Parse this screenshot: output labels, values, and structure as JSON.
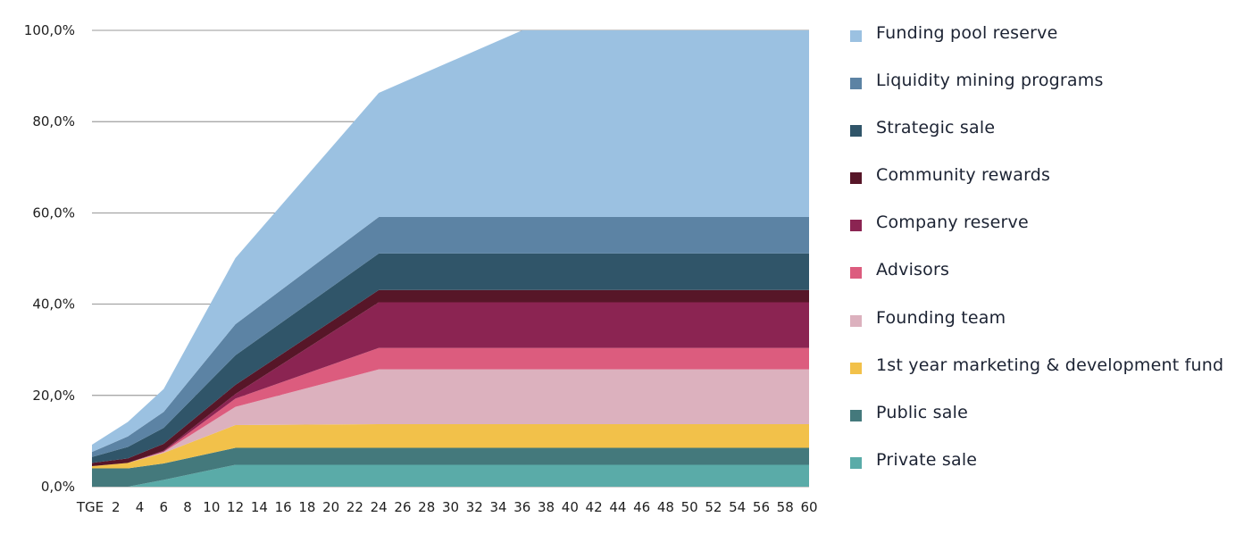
{
  "chart_data": {
    "type": "area",
    "stacked": true,
    "title": "",
    "xlabel": "",
    "ylabel": "",
    "ylim": [
      0,
      100
    ],
    "y_ticks": [
      "0,0%",
      "20,0%",
      "40,0%",
      "60,0%",
      "80,0%",
      "100,0%"
    ],
    "grid": true,
    "legend_position": "right",
    "x_tick_labels": [
      "TGE",
      "2",
      "4",
      "6",
      "8",
      "10",
      "12",
      "14",
      "16",
      "18",
      "20",
      "22",
      "24",
      "26",
      "28",
      "30",
      "32",
      "34",
      "36",
      "38",
      "40",
      "42",
      "44",
      "46",
      "48",
      "50",
      "52",
      "54",
      "56",
      "58",
      "60"
    ],
    "x": [
      0,
      3,
      6,
      12,
      24,
      36,
      40,
      60
    ],
    "series": [
      {
        "name": "Private sale",
        "color": "#5aaba8",
        "values": [
          0,
          0,
          1.5,
          4.8,
          4.8,
          4.8,
          4.8,
          4.8
        ]
      },
      {
        "name": "Public sale",
        "color": "#44797c",
        "values": [
          4.0,
          4.0,
          3.6,
          3.7,
          3.7,
          3.7,
          3.7,
          3.7
        ]
      },
      {
        "name": "1st year marketing & development fund",
        "color": "#f2c14a",
        "values": [
          0.5,
          1.2,
          2.3,
          5.0,
          5.2,
          5.2,
          5.2,
          5.2
        ]
      },
      {
        "name": "Founding team",
        "color": "#dcb1be",
        "values": [
          0,
          0,
          0.2,
          4.0,
          12.0,
          12.0,
          12.0,
          12.0
        ]
      },
      {
        "name": "Advisors",
        "color": "#dc5c7e",
        "values": [
          0,
          0,
          0.1,
          1.8,
          4.7,
          4.7,
          4.7,
          4.7
        ]
      },
      {
        "name": "Company reserve",
        "color": "#8b2452",
        "values": [
          0,
          0,
          0.2,
          1.0,
          10.0,
          10.0,
          10.0,
          10.0
        ]
      },
      {
        "name": "Community rewards",
        "color": "#571628",
        "values": [
          0.7,
          1.0,
          1.5,
          2.0,
          2.7,
          2.7,
          2.7,
          2.7
        ]
      },
      {
        "name": "Strategic sale",
        "color": "#305569",
        "values": [
          1.3,
          2.5,
          3.5,
          6.5,
          8.0,
          8.0,
          8.0,
          8.0
        ]
      },
      {
        "name": "Liquidity mining programs",
        "color": "#5c83a4",
        "values": [
          1.1,
          2.3,
          3.5,
          6.8,
          8.0,
          8.0,
          8.0,
          8.0
        ]
      },
      {
        "name": "Funding pool reserve",
        "color": "#9bc1e1",
        "values": [
          1.6,
          3.2,
          5.0,
          14.5,
          27.2,
          40.9,
          40.9,
          40.9
        ]
      }
    ]
  }
}
